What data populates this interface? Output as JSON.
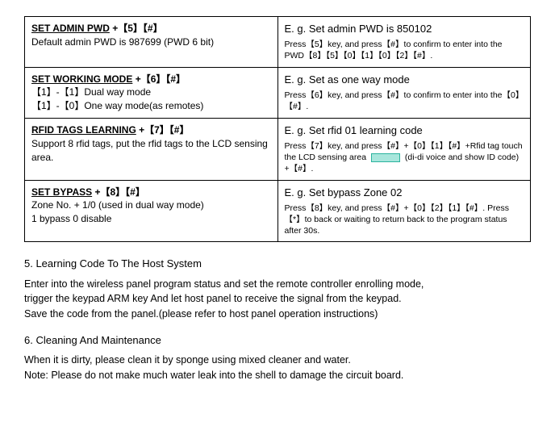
{
  "rows": [
    {
      "left_title": "SET ADMIN PWD",
      "left_keys": "+【5】【#】",
      "left_body": "Default admin PWD is 987699 (PWD 6 bit)",
      "right_title": "E. g.  Set admin PWD is 850102",
      "right_body": "Press【5】key, and press【#】to confirm to enter into the PWD【8】【5】【0】【1】【0】【2】【#】."
    },
    {
      "left_title": "SET WORKING MODE",
      "left_keys": "+【6】【#】",
      "left_body": "【1】-【1】Dual way mode\n【1】-【0】One way mode(as remotes)",
      "right_title": "E. g.  Set as one way mode",
      "right_body": "Press【6】key, and press【#】to confirm to enter into the【0】【#】."
    },
    {
      "left_title": "RFID TAGS LEARNING",
      "left_keys": "+【7】【#】",
      "left_body": "Support 8 rfid tags, put the rfid tags to the LCD sensing area.",
      "right_title": "E. g.  Set rfid 01 learning code",
      "right_body_pre": "Press【7】key, and press【#】+【0】【1】【#】+Rfid tag touch the LCD sensing area ",
      "right_body_post": " (di-di voice and show ID code) +【#】."
    },
    {
      "left_title": "SET BYPASS",
      "left_keys": "+【8】【#】",
      "left_body": "Zone No. + 1/0 (used in dual way mode)\n1 bypass    0 disable",
      "right_title": "E. g.  Set bypass Zone 02",
      "right_body": "Press【8】key, and press【#】+【0】【2】【1】【#】. Press 【*】to back or waiting to return back to the program status after 30s."
    }
  ],
  "section5_head": "5. Learning Code To The Host System",
  "section5_p1": "Enter into the wireless panel program status and set the remote controller enrolling mode,",
  "section5_p2": " trigger the keypad ARM key And let host panel to receive the signal from the keypad.",
  "section5_p3": "Save the code from the panel.(please refer to host panel operation instructions)",
  "section6_head": "6. Cleaning And Maintenance",
  "section6_p1": "When it is dirty, please clean it by sponge using mixed cleaner and water.",
  "section6_p2": "Note: Please do not make much water leak into the shell to damage the circuit board."
}
